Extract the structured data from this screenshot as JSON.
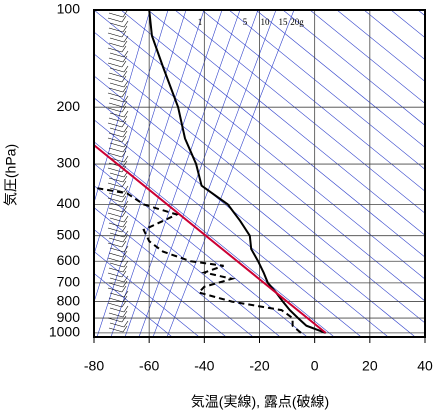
{
  "chart_data": {
    "type": "line",
    "xlabel": "気温(実線), 露点(破線)",
    "ylabel": "気圧(hPa)",
    "xlim": [
      -80,
      40
    ],
    "xticks": [
      -80,
      -60,
      -40,
      -20,
      0,
      20,
      40
    ],
    "ylim": [
      100,
      1030
    ],
    "yticks": [
      100,
      200,
      300,
      400,
      500,
      600,
      700,
      800,
      900,
      1000
    ],
    "y_scale": "log",
    "y_inverted": true,
    "grid": true,
    "mixing_ratio_labels": [
      "1",
      "5",
      "10",
      "15",
      "20g"
    ],
    "series": [
      {
        "color": "#000000",
        "dash": false,
        "x": [
          4,
          -3,
          -6,
          -9,
          -11.5,
          -14,
          -17,
          -18.5,
          -20.5,
          -23,
          -23.5,
          -27,
          -31.5,
          -41,
          -43,
          -47,
          -49.5,
          -55,
          -59,
          -60
        ],
        "y": [
          1000,
          950,
          900,
          850,
          800,
          750,
          700,
          650,
          600,
          550,
          500,
          450,
          400,
          350,
          300,
          250,
          200,
          150,
          120,
          100
        ]
      },
      {
        "color": "#000000",
        "dash": true,
        "x": [
          -5,
          -8,
          -8,
          -12,
          -30,
          -42,
          -40,
          -30,
          -40,
          -33,
          -45,
          -55,
          -60,
          -62,
          -50,
          -62,
          -68,
          -80
        ],
        "y": [
          1000,
          950,
          900,
          850,
          800,
          750,
          720,
          680,
          650,
          620,
          600,
          560,
          520,
          480,
          430,
          400,
          370,
          355
        ]
      },
      {
        "color": "#cc0033",
        "dash": false,
        "x": [
          4,
          -80
        ],
        "y": [
          1000,
          262
        ]
      }
    ]
  }
}
